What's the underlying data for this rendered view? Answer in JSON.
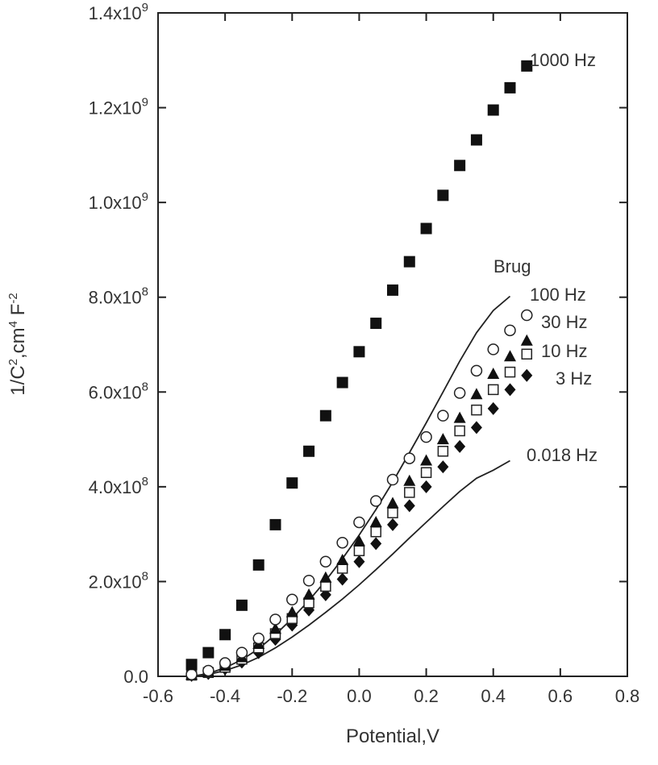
{
  "chart_data": {
    "type": "scatter",
    "xlabel": "Potential,V",
    "ylabel_parts": {
      "main": "1/C",
      "sup1": "2",
      "mid": ",cm",
      "sup2": "4",
      "mid2": " F",
      "sup3": "-2"
    },
    "xlim": [
      -0.6,
      0.8
    ],
    "ylim": [
      0,
      1400000000.0
    ],
    "x_ticks": [
      {
        "value": -0.6,
        "label": "-0.6"
      },
      {
        "value": -0.4,
        "label": "-0.4"
      },
      {
        "value": -0.2,
        "label": "-0.2"
      },
      {
        "value": 0.0,
        "label": "0.0"
      },
      {
        "value": 0.2,
        "label": "0.2"
      },
      {
        "value": 0.4,
        "label": "0.4"
      },
      {
        "value": 0.6,
        "label": "0.6"
      },
      {
        "value": 0.8,
        "label": "0.8"
      }
    ],
    "y_ticks": [
      {
        "value": 0,
        "label": "0.0"
      },
      {
        "value": 200000000.0,
        "mant": "2.0x10",
        "exp": "8"
      },
      {
        "value": 400000000.0,
        "mant": "4.0x10",
        "exp": "8"
      },
      {
        "value": 600000000.0,
        "mant": "6.0x10",
        "exp": "8"
      },
      {
        "value": 800000000.0,
        "mant": "8.0x10",
        "exp": "8"
      },
      {
        "value": 1000000000.0,
        "mant": "1.0x10",
        "exp": "9"
      },
      {
        "value": 1200000000.0,
        "mant": "1.2x10",
        "exp": "9"
      },
      {
        "value": 1400000000.0,
        "mant": "1.4x10",
        "exp": "9"
      }
    ],
    "grid": false,
    "series": [
      {
        "name": "1000 Hz",
        "marker": "filled-square",
        "x": [
          -0.5,
          -0.45,
          -0.4,
          -0.35,
          -0.3,
          -0.25,
          -0.2,
          -0.15,
          -0.1,
          -0.05,
          0.0,
          0.05,
          0.1,
          0.15,
          0.2,
          0.25,
          0.3,
          0.35,
          0.4,
          0.45,
          0.5
        ],
        "y": [
          25000000.0,
          50000000.0,
          88000000.0,
          150000000.0,
          235000000.0,
          320000000.0,
          408000000.0,
          475000000.0,
          550000000.0,
          620000000.0,
          685000000.0,
          745000000.0,
          815000000.0,
          875000000.0,
          945000000.0,
          1015000000.0,
          1078000000.0,
          1132000000.0,
          1195000000.0,
          1242000000.0,
          1288000000.0
        ]
      },
      {
        "name": "100 Hz",
        "marker": "open-circle",
        "x": [
          -0.5,
          -0.45,
          -0.4,
          -0.35,
          -0.3,
          -0.25,
          -0.2,
          -0.15,
          -0.1,
          -0.05,
          0.0,
          0.05,
          0.1,
          0.15,
          0.2,
          0.25,
          0.3,
          0.35,
          0.4,
          0.45,
          0.5
        ],
        "y": [
          4000000.0,
          12000000.0,
          28000000.0,
          50000000.0,
          80000000.0,
          120000000.0,
          162000000.0,
          202000000.0,
          242000000.0,
          282000000.0,
          325000000.0,
          370000000.0,
          415000000.0,
          460000000.0,
          505000000.0,
          550000000.0,
          598000000.0,
          645000000.0,
          690000000.0,
          730000000.0,
          762000000.0
        ]
      },
      {
        "name": "30 Hz",
        "marker": "filled-triangle",
        "x": [
          -0.5,
          -0.45,
          -0.4,
          -0.35,
          -0.3,
          -0.25,
          -0.2,
          -0.15,
          -0.1,
          -0.05,
          0.0,
          0.05,
          0.1,
          0.15,
          0.2,
          0.25,
          0.3,
          0.35,
          0.4,
          0.45,
          0.5
        ],
        "y": [
          3000000.0,
          9000000.0,
          22000000.0,
          40000000.0,
          68000000.0,
          100000000.0,
          135000000.0,
          172000000.0,
          208000000.0,
          245000000.0,
          285000000.0,
          325000000.0,
          365000000.0,
          412000000.0,
          455000000.0,
          500000000.0,
          545000000.0,
          595000000.0,
          638000000.0,
          675000000.0,
          708000000.0
        ]
      },
      {
        "name": "10 Hz",
        "marker": "open-square",
        "x": [
          -0.5,
          -0.45,
          -0.4,
          -0.35,
          -0.3,
          -0.25,
          -0.2,
          -0.15,
          -0.1,
          -0.05,
          0.0,
          0.05,
          0.1,
          0.15,
          0.2,
          0.25,
          0.3,
          0.35,
          0.4,
          0.45,
          0.5
        ],
        "y": [
          2500000.0,
          8000000.0,
          19000000.0,
          36000000.0,
          60000000.0,
          90000000.0,
          122000000.0,
          155000000.0,
          190000000.0,
          228000000.0,
          265000000.0,
          305000000.0,
          345000000.0,
          388000000.0,
          430000000.0,
          475000000.0,
          518000000.0,
          562000000.0,
          605000000.0,
          642000000.0,
          680000000.0
        ]
      },
      {
        "name": "3 Hz",
        "marker": "filled-diamond",
        "x": [
          -0.5,
          -0.45,
          -0.4,
          -0.35,
          -0.3,
          -0.25,
          -0.2,
          -0.15,
          -0.1,
          -0.05,
          0.0,
          0.05,
          0.1,
          0.15,
          0.2,
          0.25,
          0.3,
          0.35,
          0.4,
          0.45,
          0.5
        ],
        "y": [
          2000000.0,
          6000000.0,
          16000000.0,
          30000000.0,
          50000000.0,
          78000000.0,
          108000000.0,
          140000000.0,
          172000000.0,
          205000000.0,
          242000000.0,
          280000000.0,
          320000000.0,
          360000000.0,
          400000000.0,
          442000000.0,
          485000000.0,
          525000000.0,
          565000000.0,
          605000000.0,
          635000000.0
        ]
      }
    ],
    "curves": [
      {
        "name": "Brug",
        "x": [
          -0.5,
          -0.45,
          -0.4,
          -0.35,
          -0.3,
          -0.25,
          -0.2,
          -0.15,
          -0.1,
          -0.05,
          0.0,
          0.05,
          0.1,
          0.15,
          0.2,
          0.25,
          0.3,
          0.35,
          0.4,
          0.45
        ],
        "y": [
          0,
          6000000.0,
          18000000.0,
          35000000.0,
          58000000.0,
          88000000.0,
          122000000.0,
          160000000.0,
          202000000.0,
          248000000.0,
          298000000.0,
          352000000.0,
          410000000.0,
          472000000.0,
          535000000.0,
          600000000.0,
          665000000.0,
          725000000.0,
          772000000.0,
          802000000.0
        ]
      },
      {
        "name": "0.018 Hz",
        "x": [
          -0.5,
          -0.45,
          -0.4,
          -0.35,
          -0.3,
          -0.25,
          -0.2,
          -0.15,
          -0.1,
          -0.05,
          0.0,
          0.05,
          0.1,
          0.15,
          0.2,
          0.25,
          0.3,
          0.35,
          0.4,
          0.45
        ],
        "y": [
          0,
          4000000.0,
          12000000.0,
          24000000.0,
          40000000.0,
          60000000.0,
          83000000.0,
          108000000.0,
          135000000.0,
          163000000.0,
          193000000.0,
          225000000.0,
          258000000.0,
          292000000.0,
          325000000.0,
          358000000.0,
          390000000.0,
          418000000.0,
          435000000.0,
          455000000.0
        ]
      }
    ],
    "labels": [
      {
        "text": "1000 Hz",
        "series": "1000 Hz"
      },
      {
        "text": "Brug",
        "series": "Brug"
      },
      {
        "text": "100 Hz",
        "series": "100 Hz"
      },
      {
        "text": "30 Hz",
        "series": "30 Hz"
      },
      {
        "text": "10 Hz",
        "series": "10 Hz"
      },
      {
        "text": "3 Hz",
        "series": "3 Hz"
      },
      {
        "text": "0.018 Hz",
        "series": "0.018 Hz"
      }
    ]
  }
}
